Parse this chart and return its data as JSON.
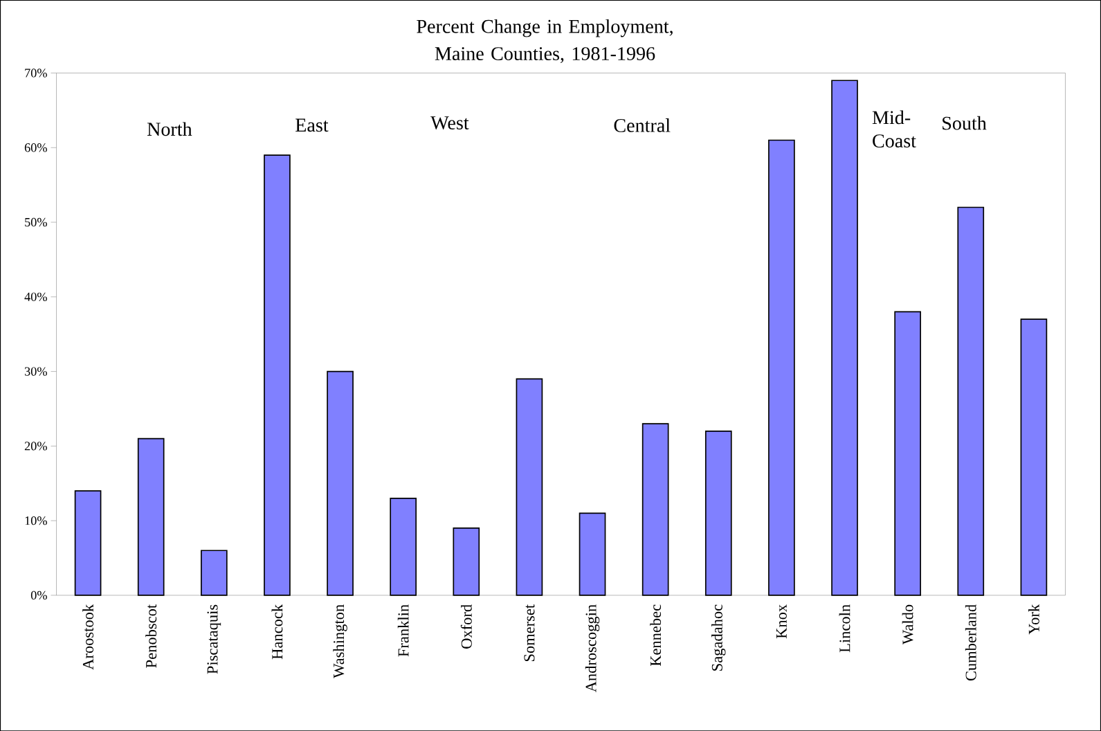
{
  "chart_data": {
    "type": "bar",
    "title": "Percent Change in Employment, Maine Counties, 1981-1996",
    "categories": [
      "Aroostook",
      "Penobscot",
      "Piscataquis",
      "Hancock",
      "Washington",
      "Franklin",
      "Oxford",
      "Somerset",
      "Androscoggin",
      "Kennebec",
      "Sagadahoc",
      "Knox",
      "Lincoln",
      "Waldo",
      "Cumberland",
      "York"
    ],
    "values": [
      14,
      21,
      6,
      59,
      30,
      13,
      9,
      29,
      11,
      23,
      22,
      61,
      69,
      38,
      52,
      37
    ],
    "color": "#8080ff",
    "ylim": [
      0,
      70
    ],
    "yticks": [
      {
        "value": 0,
        "label": "0%"
      },
      {
        "value": 10,
        "label": "10%"
      },
      {
        "value": 20,
        "label": "20%"
      },
      {
        "value": 30,
        "label": "30%"
      },
      {
        "value": 40,
        "label": "40%"
      },
      {
        "value": 50,
        "label": "50%"
      },
      {
        "value": 60,
        "label": "60%"
      },
      {
        "value": 70,
        "label": "70%"
      }
    ],
    "annotations": [
      "North",
      "East",
      "West",
      "Central",
      "Mid-Coast",
      "South"
    ],
    "grid": false
  }
}
